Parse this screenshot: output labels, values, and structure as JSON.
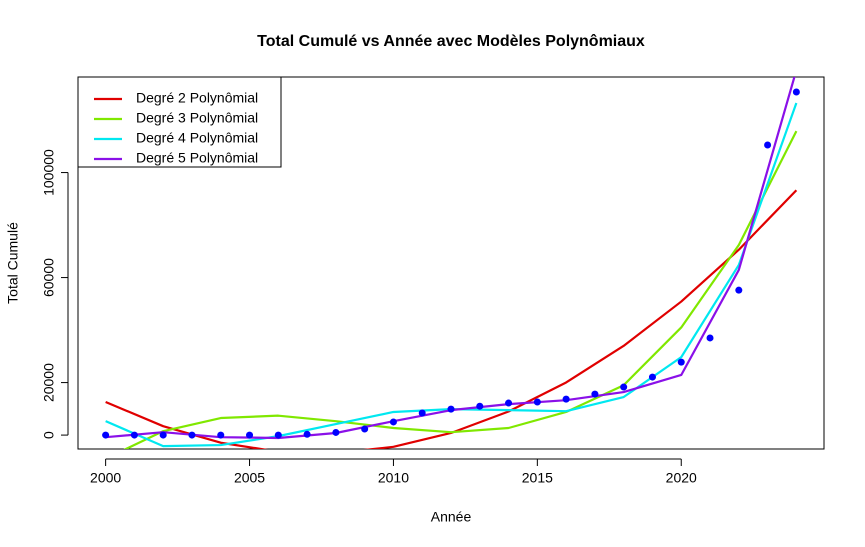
{
  "chart_data": {
    "type": "scatter",
    "title": "Total Cumulé vs Année avec Modèles Polynômiaux",
    "x_label": "Année",
    "y_label": "Total Cumulé",
    "xlim": [
      1999.04,
      2024.96
    ],
    "ylim": [
      -5300,
      136400
    ],
    "xticks": [
      2000,
      2005,
      2010,
      2015,
      2020
    ],
    "yticks": [
      0,
      20000,
      60000,
      100000
    ],
    "points": {
      "color": "#0000ff",
      "x": [
        2000,
        2001,
        2002,
        2003,
        2004,
        2005,
        2006,
        2007,
        2008,
        2009,
        2010,
        2011,
        2012,
        2013,
        2014,
        2015,
        2016,
        2017,
        2018,
        2019,
        2020,
        2021,
        2022,
        2023,
        2024
      ],
      "values": [
        0,
        0,
        0,
        0,
        0,
        0,
        0,
        300,
        1000,
        2300,
        5000,
        8400,
        9900,
        11000,
        12200,
        12600,
        13700,
        15600,
        18300,
        22100,
        27800,
        37000,
        55200,
        110500,
        130700
      ]
    },
    "line_x": [
      2000,
      2002,
      2004,
      2006,
      2008,
      2010,
      2012,
      2014,
      2016,
      2018,
      2020,
      2022,
      2024
    ],
    "series": [
      {
        "name": "Degré 2 Polynômial",
        "color": "#e00000",
        "values": [
          12600,
          3394,
          -2916,
          -6330,
          -6848,
          -4470,
          804,
          8974,
          20040,
          34002,
          50860,
          70614,
          93264
        ]
      },
      {
        "name": "Degré 3 Polynômial",
        "color": "#80e800",
        "values": [
          -9000,
          1500,
          6500,
          7400,
          5300,
          2700,
          1100,
          2700,
          8800,
          19000,
          41000,
          72400,
          115800
        ]
      },
      {
        "name": "Degré 4 Polynômial",
        "color": "#00e8f0",
        "values": [
          5300,
          -4200,
          -3800,
          -400,
          4200,
          8800,
          9900,
          9500,
          9100,
          14500,
          29700,
          64800,
          126500
        ]
      },
      {
        "name": "Degré 5 Polynômial",
        "color": "#8a10e8",
        "values": [
          -800,
          1100,
          -800,
          -1100,
          800,
          5300,
          9500,
          11800,
          13300,
          16400,
          22900,
          62900,
          139000
        ]
      }
    ],
    "legend": "top-left"
  }
}
